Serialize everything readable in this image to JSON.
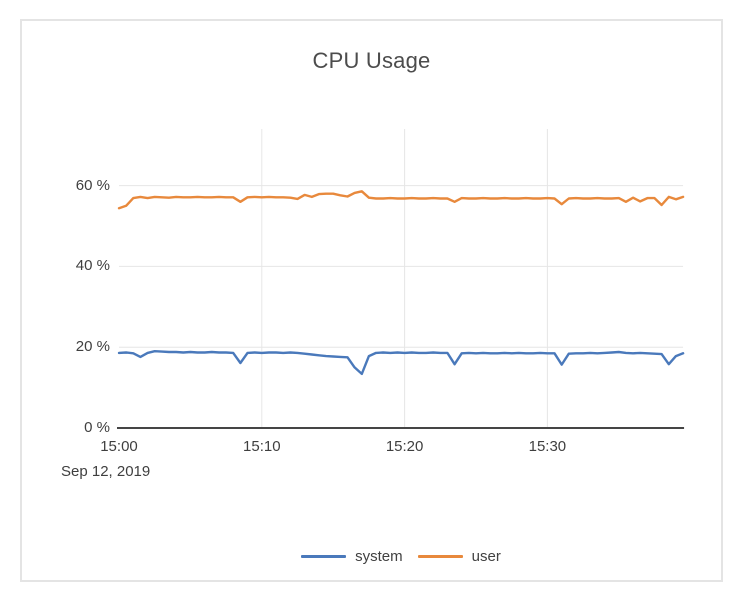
{
  "panel": {
    "title": "CPU Usage"
  },
  "chart_data": {
    "type": "line",
    "title": "CPU Usage",
    "grid": true,
    "legend_position": "bottom",
    "x_axis": {
      "date_label": "Sep 12, 2019",
      "tick_labels": [
        "15:00",
        "15:10",
        "15:20",
        "15:30"
      ],
      "tick_minutes": [
        0,
        10,
        20,
        30
      ],
      "start_time": "15:00",
      "range_minutes": [
        0,
        39.5
      ]
    },
    "y_axis": {
      "tick_labels": [
        "0 %",
        "20 %",
        "40 %",
        "60 %"
      ],
      "tick_values": [
        0,
        20,
        40,
        60
      ],
      "unit": "%",
      "range": [
        0,
        74
      ]
    },
    "sample_interval_minutes": 0.5,
    "series": [
      {
        "name": "system",
        "color": "#4a79bb",
        "values": [
          18.6,
          18.7,
          18.5,
          17.6,
          18.6,
          19.0,
          18.9,
          18.8,
          18.8,
          18.7,
          18.8,
          18.7,
          18.7,
          18.8,
          18.7,
          18.7,
          18.6,
          16.1,
          18.6,
          18.7,
          18.6,
          18.7,
          18.7,
          18.6,
          18.7,
          18.6,
          18.4,
          18.2,
          18.0,
          17.8,
          17.7,
          17.6,
          17.5,
          15.0,
          13.4,
          17.8,
          18.6,
          18.7,
          18.6,
          18.7,
          18.6,
          18.7,
          18.6,
          18.6,
          18.7,
          18.6,
          18.6,
          15.8,
          18.5,
          18.6,
          18.5,
          18.6,
          18.5,
          18.5,
          18.6,
          18.5,
          18.6,
          18.5,
          18.5,
          18.6,
          18.5,
          18.5,
          15.7,
          18.4,
          18.5,
          18.5,
          18.6,
          18.5,
          18.6,
          18.7,
          18.8,
          18.6,
          18.5,
          18.6,
          18.5,
          18.4,
          18.3,
          15.8,
          17.8,
          18.5
        ]
      },
      {
        "name": "user",
        "color": "#e8893c",
        "values": [
          54.4,
          55.0,
          56.9,
          57.2,
          56.9,
          57.2,
          57.1,
          57.0,
          57.2,
          57.1,
          57.1,
          57.2,
          57.1,
          57.1,
          57.2,
          57.1,
          57.1,
          56.0,
          57.1,
          57.2,
          57.1,
          57.2,
          57.1,
          57.1,
          57.0,
          56.7,
          57.7,
          57.2,
          57.9,
          58.0,
          58.0,
          57.6,
          57.3,
          58.2,
          58.6,
          57.0,
          56.8,
          56.8,
          56.9,
          56.8,
          56.8,
          56.9,
          56.8,
          56.8,
          56.9,
          56.8,
          56.8,
          56.0,
          56.9,
          56.8,
          56.8,
          56.9,
          56.8,
          56.8,
          56.9,
          56.8,
          56.8,
          56.9,
          56.8,
          56.8,
          56.9,
          56.8,
          55.4,
          56.8,
          56.9,
          56.8,
          56.8,
          56.9,
          56.8,
          56.8,
          56.9,
          56.0,
          57.0,
          56.1,
          56.9,
          56.9,
          55.2,
          57.2,
          56.6,
          57.2
        ]
      }
    ]
  },
  "colors": {
    "axis": "#454545",
    "grid": "#e6e6e6",
    "text": "#3f3f3f",
    "panel_border": "#e4e4e4",
    "system_series": "#4a79bb",
    "user_series": "#e8893c"
  }
}
